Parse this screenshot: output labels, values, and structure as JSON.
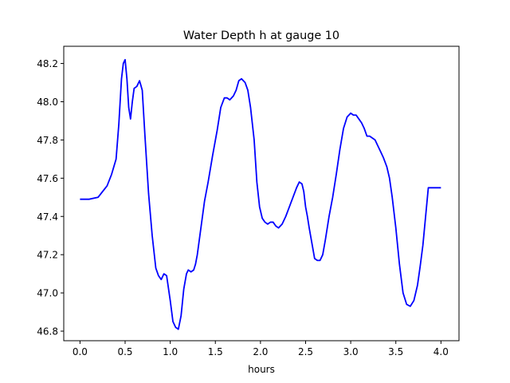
{
  "chart_data": {
    "type": "line",
    "title": "Water Depth h at gauge 10",
    "xlabel": "hours",
    "ylabel": "",
    "xlim": [
      -0.18,
      4.2
    ],
    "ylim": [
      46.75,
      48.29
    ],
    "xticks": [
      0.0,
      0.5,
      1.0,
      1.5,
      2.0,
      2.5,
      3.0,
      3.5,
      4.0
    ],
    "xtick_labels": [
      "0.0",
      "0.5",
      "1.0",
      "1.5",
      "2.0",
      "2.5",
      "3.0",
      "3.5",
      "4.0"
    ],
    "yticks": [
      46.8,
      47.0,
      47.2,
      47.4,
      47.6,
      47.8,
      48.0,
      48.2
    ],
    "ytick_labels": [
      "46.8",
      "47.0",
      "47.2",
      "47.4",
      "47.6",
      "47.8",
      "48.0",
      "48.2"
    ],
    "grid": false,
    "legend": "none",
    "line_color": "#0000ff",
    "series": [
      {
        "x": [
          0.0,
          0.1,
          0.2,
          0.3,
          0.35,
          0.4,
          0.43,
          0.46,
          0.48,
          0.5,
          0.52,
          0.54,
          0.56,
          0.58,
          0.6,
          0.63,
          0.66,
          0.69,
          0.72,
          0.76,
          0.8,
          0.84,
          0.87,
          0.9,
          0.93,
          0.96,
          1.0,
          1.03,
          1.06,
          1.09,
          1.12,
          1.15,
          1.18,
          1.2,
          1.23,
          1.26,
          1.28,
          1.3,
          1.34,
          1.38,
          1.42,
          1.47,
          1.52,
          1.56,
          1.6,
          1.63,
          1.66,
          1.7,
          1.73,
          1.76,
          1.79,
          1.81,
          1.83,
          1.86,
          1.89,
          1.93,
          1.96,
          1.99,
          2.02,
          2.05,
          2.08,
          2.11,
          2.14,
          2.17,
          2.2,
          2.24,
          2.28,
          2.32,
          2.36,
          2.4,
          2.43,
          2.46,
          2.48,
          2.5,
          2.52,
          2.54,
          2.57,
          2.6,
          2.63,
          2.66,
          2.69,
          2.72,
          2.76,
          2.8,
          2.84,
          2.88,
          2.92,
          2.96,
          3.0,
          3.03,
          3.06,
          3.09,
          3.12,
          3.15,
          3.18,
          3.21,
          3.24,
          3.27,
          3.3,
          3.33,
          3.36,
          3.4,
          3.43,
          3.46,
          3.5,
          3.54,
          3.58,
          3.62,
          3.66,
          3.7,
          3.74,
          3.77,
          3.8,
          3.83,
          3.86,
          3.9,
          3.95,
          4.0
        ],
        "y": [
          47.49,
          47.49,
          47.5,
          47.56,
          47.62,
          47.7,
          47.88,
          48.12,
          48.2,
          48.22,
          48.12,
          47.97,
          47.91,
          48.0,
          48.07,
          48.08,
          48.11,
          48.06,
          47.82,
          47.52,
          47.3,
          47.13,
          47.09,
          47.07,
          47.1,
          47.09,
          46.96,
          46.85,
          46.82,
          46.81,
          46.88,
          47.02,
          47.1,
          47.12,
          47.11,
          47.12,
          47.15,
          47.2,
          47.34,
          47.48,
          47.58,
          47.72,
          47.85,
          47.97,
          48.02,
          48.02,
          48.01,
          48.03,
          48.06,
          48.11,
          48.12,
          48.11,
          48.1,
          48.06,
          47.97,
          47.8,
          47.58,
          47.45,
          47.39,
          47.37,
          47.36,
          47.37,
          47.37,
          47.35,
          47.34,
          47.36,
          47.4,
          47.45,
          47.5,
          47.55,
          47.58,
          47.57,
          47.53,
          47.45,
          47.4,
          47.34,
          47.26,
          47.18,
          47.17,
          47.17,
          47.2,
          47.28,
          47.4,
          47.5,
          47.62,
          47.75,
          47.86,
          47.92,
          47.94,
          47.93,
          47.93,
          47.91,
          47.89,
          47.86,
          47.82,
          47.82,
          47.81,
          47.8,
          47.77,
          47.74,
          47.71,
          47.66,
          47.6,
          47.5,
          47.34,
          47.15,
          47.0,
          46.94,
          46.93,
          46.96,
          47.04,
          47.14,
          47.25,
          47.4,
          47.55,
          47.55,
          47.55,
          47.55
        ]
      }
    ]
  }
}
